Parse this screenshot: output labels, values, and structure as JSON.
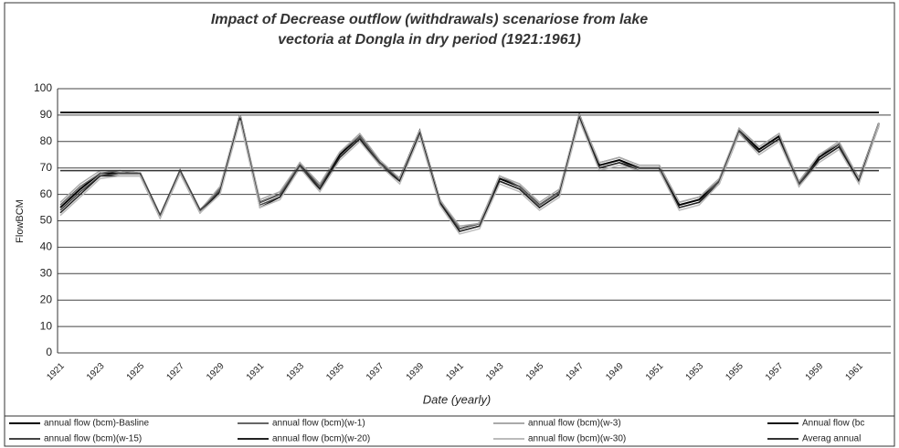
{
  "chart_data": {
    "type": "line",
    "title": "Impact of Decrease outflow (withdrawals) scenariose from lake vectoria at Dongla in dry period (1921:1961)",
    "title_lines": [
      "Impact of Decrease outflow (withdrawals) scenariose from lake",
      "vectoria at Dongla in dry period (1921:1961)"
    ],
    "x_label": "Date (yearly)",
    "y_label": "FlowBCM",
    "categories": [
      "1921",
      null,
      "1923",
      null,
      "1925",
      null,
      "1927",
      null,
      "1929",
      null,
      "1931",
      null,
      "1933",
      null,
      "1935",
      null,
      "1937",
      null,
      "1939",
      null,
      "1941",
      null,
      "1943",
      null,
      "1945",
      null,
      "1947",
      null,
      "1949",
      null,
      "1951",
      null,
      "1953",
      null,
      "1955",
      null,
      "1957",
      null,
      "1959",
      null,
      "1961",
      null
    ],
    "ylim": [
      0,
      100
    ],
    "yticks": [
      0,
      10,
      20,
      30,
      40,
      50,
      60,
      70,
      80,
      90,
      100
    ],
    "grid": true,
    "legend": "bottom",
    "series": [
      {
        "name": "annual flow  (bcm)-Basline",
        "color": "#000000",
        "values": [
          55,
          62,
          68,
          68,
          68,
          52,
          69,
          54,
          62,
          90,
          57,
          60,
          71,
          63,
          75,
          82,
          72,
          66,
          84,
          58,
          47,
          49,
          66,
          63,
          56,
          61,
          90,
          71,
          73,
          70,
          70,
          56,
          58,
          65,
          84,
          77,
          82,
          64,
          74,
          79,
          66,
          87
        ]
      },
      {
        "name": "annual flow  (bcm)(w-1)",
        "color": "#666666",
        "values": [
          56,
          63,
          68,
          69,
          68,
          52,
          69,
          54,
          62,
          90,
          57,
          60,
          72,
          63,
          76,
          82,
          72,
          66,
          84,
          58,
          47,
          49,
          67,
          63,
          56,
          61,
          90,
          72,
          74,
          71,
          71,
          57,
          59,
          65,
          85,
          78,
          83,
          64,
          75,
          79,
          66,
          87
        ]
      },
      {
        "name": "annual flow  (bcm)(w-3)",
        "color": "#aaaaaa",
        "values": [
          57,
          64,
          69,
          69,
          68,
          52,
          69,
          54,
          63,
          90,
          58,
          61,
          72,
          64,
          76,
          83,
          73,
          66,
          84,
          58,
          48,
          49,
          67,
          64,
          57,
          62,
          90,
          72,
          74,
          71,
          71,
          57,
          59,
          66,
          85,
          78,
          83,
          65,
          75,
          80,
          66,
          87
        ]
      },
      {
        "name": "Annual flow  (bc",
        "color": "#111111",
        "values": [
          91,
          91,
          91,
          91,
          91,
          91,
          91,
          91,
          91,
          91,
          91,
          91,
          91,
          91,
          91,
          91,
          91,
          91,
          91,
          91,
          91,
          91,
          91,
          91,
          91,
          91,
          91,
          91,
          91,
          91,
          91,
          91,
          91,
          91,
          91,
          91,
          91,
          91,
          91,
          91,
          91,
          91
        ]
      },
      {
        "name": "annual flow  (bcm)(w-15)",
        "color": "#444444",
        "values": [
          54,
          61,
          67,
          68,
          68,
          52,
          69,
          54,
          61,
          89,
          56,
          59,
          71,
          62,
          74,
          81,
          72,
          65,
          83,
          57,
          46,
          48,
          65,
          62,
          55,
          60,
          89,
          70,
          72,
          70,
          70,
          55,
          57,
          65,
          84,
          76,
          81,
          64,
          73,
          78,
          65,
          86
        ]
      },
      {
        "name": "annual flow  (bcm)(w-20)",
        "color": "#222222",
        "values": [
          53,
          60,
          67,
          67,
          67,
          51,
          68,
          53,
          61,
          89,
          55,
          59,
          70,
          62,
          74,
          81,
          71,
          65,
          83,
          57,
          46,
          48,
          65,
          62,
          55,
          60,
          89,
          70,
          72,
          69,
          69,
          55,
          57,
          64,
          83,
          76,
          81,
          63,
          73,
          78,
          65,
          86
        ]
      },
      {
        "name": "annual flow  (bcm)(w-30)",
        "color": "#bbbbbb",
        "values": [
          52,
          59,
          66,
          67,
          67,
          51,
          68,
          53,
          60,
          88,
          55,
          58,
          70,
          61,
          73,
          80,
          71,
          64,
          82,
          56,
          45,
          47,
          64,
          61,
          54,
          59,
          88,
          69,
          71,
          69,
          69,
          54,
          56,
          64,
          83,
          75,
          80,
          63,
          72,
          77,
          64,
          86
        ]
      },
      {
        "name": "Averag annual",
        "color": "#333333",
        "values": [
          69,
          69,
          69,
          69,
          69,
          69,
          69,
          69,
          69,
          69,
          69,
          69,
          69,
          69,
          69,
          69,
          69,
          69,
          69,
          69,
          69,
          69,
          69,
          69,
          69,
          69,
          69,
          69,
          69,
          69,
          69,
          69,
          69,
          69,
          69,
          69,
          69,
          69,
          69,
          69,
          69,
          69
        ]
      }
    ]
  }
}
